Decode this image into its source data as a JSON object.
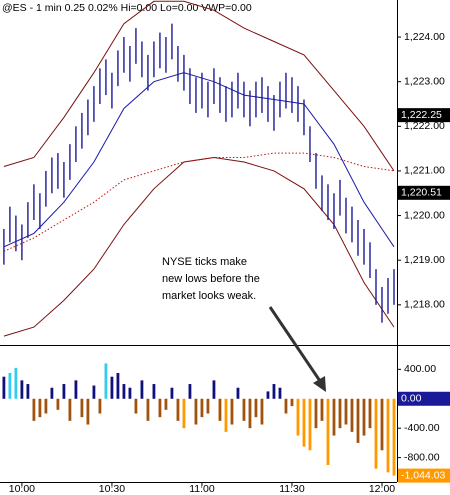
{
  "chart_data": [
    {
      "type": "ohlc",
      "title": "@ES - 1 min  0.25  0.02%  Hi=0.00  Lo=0.00  VWP=0.00",
      "annotation": [
        "NYSE ticks make",
        "new lows before the",
        "market looks weak."
      ],
      "color": "#1a1a99",
      "xlim": [
        592.7,
        725
      ],
      "ylim": [
        1217.1,
        1224.83
      ],
      "yticks": [
        {
          "value": 1218,
          "label": "1,218.00"
        },
        {
          "value": 1219,
          "label": "1,219.00"
        },
        {
          "value": 1220,
          "label": "1,220.00"
        },
        {
          "value": 1221,
          "label": "1,221.00"
        },
        {
          "value": 1222,
          "label": "1,222.00"
        },
        {
          "value": 1223,
          "label": "1,223.00"
        },
        {
          "value": 1224,
          "label": "1,224.00"
        }
      ],
      "x": [
        594,
        596,
        598,
        600,
        602,
        604,
        606,
        608,
        610,
        612,
        614,
        616,
        618,
        620,
        622,
        624,
        626,
        628,
        630,
        632,
        634,
        636,
        638,
        640,
        642,
        644,
        646,
        648,
        650,
        652,
        654,
        656,
        658,
        660,
        662,
        664,
        666,
        668,
        670,
        672,
        674,
        676,
        678,
        680,
        682,
        684,
        686,
        688,
        690,
        692,
        694,
        696,
        698,
        700,
        702,
        704,
        706,
        708,
        710,
        712,
        714,
        716,
        718,
        720,
        722,
        724
      ],
      "high": [
        1219.7,
        1220.2,
        1220.0,
        1219.8,
        1220.3,
        1220.7,
        1220.5,
        1221.0,
        1221.3,
        1221.4,
        1221.2,
        1221.6,
        1222.0,
        1222.3,
        1222.6,
        1222.9,
        1223.3,
        1223.5,
        1223.2,
        1223.7,
        1224.0,
        1223.8,
        1224.2,
        1223.9,
        1223.6,
        1223.9,
        1224.1,
        1224.0,
        1224.3,
        1223.8,
        1223.6,
        1223.3,
        1223.1,
        1223.2,
        1223.0,
        1223.3,
        1223.1,
        1222.9,
        1223.0,
        1223.2,
        1223.0,
        1222.8,
        1223.0,
        1223.1,
        1222.9,
        1222.7,
        1223.0,
        1223.2,
        1223.1,
        1222.9,
        1222.6,
        1222.0,
        1221.4,
        1220.9,
        1220.7,
        1220.5,
        1220.8,
        1220.4,
        1220.2,
        1219.9,
        1219.7,
        1219.4,
        1218.8,
        1218.4,
        1218.6,
        1218.8
      ],
      "low": [
        1218.9,
        1219.4,
        1219.2,
        1219.0,
        1219.5,
        1219.9,
        1219.7,
        1220.2,
        1220.5,
        1220.6,
        1220.4,
        1220.8,
        1221.2,
        1221.5,
        1221.8,
        1222.1,
        1222.5,
        1222.7,
        1222.4,
        1222.9,
        1223.2,
        1223.0,
        1223.4,
        1223.1,
        1222.8,
        1223.1,
        1223.3,
        1223.2,
        1223.5,
        1223.0,
        1222.8,
        1222.5,
        1222.3,
        1222.4,
        1222.2,
        1222.5,
        1222.3,
        1222.1,
        1222.2,
        1222.4,
        1222.2,
        1222.0,
        1222.2,
        1222.3,
        1222.1,
        1221.9,
        1222.2,
        1222.4,
        1222.3,
        1222.1,
        1221.8,
        1221.2,
        1220.6,
        1220.1,
        1219.9,
        1219.7,
        1220.0,
        1219.6,
        1219.4,
        1219.1,
        1218.9,
        1218.6,
        1218.0,
        1217.6,
        1217.8,
        1218.0
      ],
      "lines": [
        {
          "color": "#1a1aaa",
          "style": "solid",
          "x": [
            594,
            604,
            614,
            624,
            634,
            644,
            654,
            664,
            674,
            684,
            694,
            704,
            714,
            724
          ],
          "values": [
            1219.3,
            1219.6,
            1220.3,
            1221.2,
            1222.4,
            1223.0,
            1223.2,
            1223.0,
            1222.7,
            1222.6,
            1222.5,
            1221.6,
            1220.3,
            1219.3
          ]
        },
        {
          "color": "#7a1010",
          "style": "solid",
          "x": [
            594,
            604,
            614,
            624,
            634,
            644,
            654,
            664,
            674,
            684,
            694,
            704,
            714,
            724
          ],
          "values": [
            1221.1,
            1221.3,
            1222.2,
            1223.2,
            1224.3,
            1224.8,
            1224.8,
            1224.6,
            1224.2,
            1223.9,
            1223.6,
            1222.8,
            1222.0,
            1221.0
          ]
        },
        {
          "color": "#7a1010",
          "style": "solid",
          "x": [
            594,
            604,
            614,
            624,
            634,
            644,
            654,
            664,
            674,
            684,
            694,
            704,
            714,
            724
          ],
          "values": [
            1217.3,
            1217.5,
            1218.1,
            1218.8,
            1219.8,
            1220.6,
            1221.2,
            1221.3,
            1221.2,
            1221.0,
            1220.6,
            1219.8,
            1218.5,
            1217.5
          ]
        },
        {
          "color": "#c01010",
          "style": "dotted",
          "x": [
            594,
            604,
            614,
            624,
            634,
            644,
            654,
            664,
            674,
            684,
            694,
            704,
            714,
            724
          ],
          "values": [
            1219.2,
            1219.5,
            1219.9,
            1220.3,
            1220.8,
            1221.0,
            1221.2,
            1221.3,
            1221.3,
            1221.4,
            1221.4,
            1221.3,
            1221.1,
            1221.0
          ]
        }
      ],
      "markers": [
        {
          "value": 1222.25,
          "label": "1,222.25",
          "color": "#000000"
        },
        {
          "value": 1220.51,
          "label": "1,220.51",
          "color": "#000000"
        }
      ]
    },
    {
      "type": "histogram-ticks",
      "colors": {
        "up": "#10107a",
        "down": "#a0520f",
        "new_high": "#33ccee",
        "new_low": "#ff9900"
      },
      "xlim": [
        592.7,
        725
      ],
      "xticks": [
        {
          "value": 600,
          "label": "10:00"
        },
        {
          "value": 630,
          "label": "10:30"
        },
        {
          "value": 660,
          "label": "11:00"
        },
        {
          "value": 690,
          "label": "11:30"
        },
        {
          "value": 720,
          "label": "12:00"
        }
      ],
      "ylim": [
        -1131,
        717
      ],
      "yticks": [
        {
          "value": 400,
          "label": "400.00"
        },
        {
          "value": -400,
          "label": "-400.00"
        },
        {
          "value": -800,
          "label": "-800.00"
        }
      ],
      "x": [
        594,
        596,
        598,
        600,
        602,
        604,
        606,
        608,
        610,
        612,
        614,
        616,
        618,
        620,
        622,
        624,
        626,
        628,
        630,
        632,
        634,
        636,
        638,
        640,
        642,
        644,
        646,
        648,
        650,
        652,
        654,
        656,
        658,
        660,
        662,
        664,
        666,
        668,
        670,
        672,
        674,
        676,
        678,
        680,
        682,
        684,
        686,
        688,
        690,
        692,
        694,
        696,
        698,
        700,
        702,
        704,
        706,
        708,
        710,
        712,
        714,
        716,
        718,
        720,
        722,
        724
      ],
      "values": [
        300,
        350,
        420,
        250,
        200,
        -300,
        -250,
        -200,
        150,
        -150,
        200,
        -300,
        250,
        -250,
        -350,
        180,
        -200,
        480,
        300,
        350,
        200,
        150,
        -200,
        250,
        -300,
        200,
        -250,
        -150,
        150,
        -300,
        -400,
        200,
        -350,
        -250,
        -200,
        250,
        -300,
        -450,
        -350,
        150,
        -300,
        -400,
        -250,
        -350,
        100,
        200,
        150,
        -200,
        -100,
        -500,
        -650,
        -700,
        -400,
        -300,
        -900,
        -500,
        -400,
        -350,
        -450,
        -600,
        -500,
        -400,
        -950,
        -700,
        -1000,
        -1044.03
      ],
      "markers": [
        {
          "value": 0,
          "label": "0.00",
          "color": "#1a1a99"
        },
        {
          "value": -1044.03,
          "label": "-1,044.03",
          "color": "#ff9900"
        }
      ]
    }
  ]
}
